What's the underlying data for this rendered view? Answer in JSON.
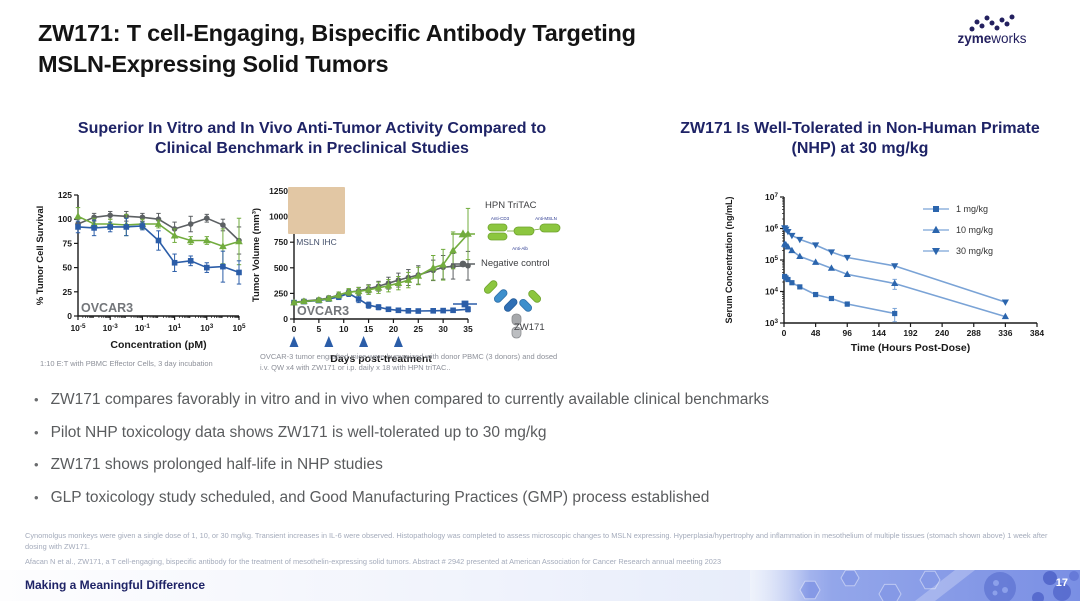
{
  "slide": {
    "title_line1": "ZW171: T cell-Engaging, Bispecific Antibody Targeting",
    "title_line2": "MSLN-Expressing Solid Tumors"
  },
  "logo": {
    "bold": "zyme",
    "rest": "works"
  },
  "left_panel": {
    "heading": "Superior In Vitro and In Vivo Anti-Tumor Activity Compared to Clinical Benchmark in Preclinical Studies"
  },
  "right_panel": {
    "heading": "ZW171 Is Well-Tolerated in Non-Human Primate (NHP) at 30 mg/kg"
  },
  "legend_b": {
    "tritac_labels": [
      "Anti-CD3",
      "Anti-MSLN",
      "Anti-Alb"
    ]
  },
  "bullets": [
    "ZW171 compares favorably in vitro and in vivo when compared to currently available clinical benchmarks",
    "Pilot NHP toxicology data shows ZW171 is well-tolerated up to 30 mg/kg",
    "ZW171 shows prolonged half-life in NHP studies",
    "GLP toxicology study scheduled, and Good Manufacturing Practices (GMP) process established"
  ],
  "footnotes": [
    "Cynomolgus monkeys were given a single dose of 1, 10, or 30 mg/kg. Transient increases in IL-6 were observed. Histopathology was completed to assess microscopic changes to MSLN expressing. Hyperplasia/hypertrophy and inflammation in mesothelium of multiple tissues (stomach shown above) 1 week after dosing with ZW171.",
    "Afacan N et al., ZW171, a T cell-engaging, bispecific antibody for the treatment of mesothelin-expressing solid tumors. Abstract # 2942 presented at American Association for Cancer Research annual meeting 2023"
  ],
  "footer": {
    "tagline": "Making a Meaningful Difference",
    "page_number": "17"
  },
  "chart_data": [
    {
      "id": "invitro",
      "type": "line",
      "annotation": "OVCAR3",
      "xlabel": "Concentration (pM)",
      "ylabel": "% Tumor Cell Survival",
      "xscale": "log",
      "xlim": [
        -5,
        5
      ],
      "xticks": [
        -5,
        -3,
        -1,
        1,
        3,
        5
      ],
      "ylim": [
        0,
        125
      ],
      "yticks": [
        0,
        25,
        50,
        75,
        100,
        125
      ],
      "caption": "1:10 E:T with PBMC Effector Cells, 3 day incubation",
      "series": [
        {
          "name": "ZW171",
          "marker": "square",
          "color": "#2b5da8",
          "x": [
            -5,
            -4,
            -3,
            -2,
            -1,
            0,
            1,
            2,
            3,
            4,
            5
          ],
          "y": [
            92,
            91,
            92,
            92,
            93,
            78,
            55,
            57,
            50,
            51,
            45
          ],
          "err": [
            6,
            8,
            5,
            9,
            4,
            10,
            9,
            5,
            5,
            16,
            12
          ]
        },
        {
          "name": "HPN TriTAC",
          "marker": "triangle-up",
          "color": "#72ac3e",
          "x": [
            -5,
            -4,
            -3,
            -2,
            -1,
            0,
            1,
            2,
            3,
            4,
            5
          ],
          "y": [
            103,
            95,
            95,
            94,
            95,
            95,
            83,
            78,
            78,
            72,
            77
          ],
          "err": [
            9,
            6,
            5,
            11,
            5,
            4,
            7,
            4,
            4,
            18,
            24
          ]
        },
        {
          "name": "Negative control",
          "marker": "circle",
          "color": "#5c6063",
          "x": [
            -5,
            -4,
            -3,
            -2,
            -1,
            0,
            1,
            2,
            3,
            4,
            5
          ],
          "y": [
            95,
            102,
            104,
            103,
            102,
            100,
            90,
            95,
            101,
            94,
            78
          ],
          "err": [
            5,
            4,
            4,
            5,
            4,
            6,
            7,
            8,
            4,
            6,
            14
          ]
        }
      ]
    },
    {
      "id": "invivo",
      "type": "line",
      "annotation": "OVCAR3",
      "xlabel": "Days post-treatment",
      "ylabel": "Tumor Volume (mm³)",
      "xlim": [
        0,
        35
      ],
      "xticks": [
        0,
        5,
        10,
        15,
        20,
        25,
        30,
        35
      ],
      "ylim": [
        0,
        1250
      ],
      "yticks": [
        0,
        250,
        500,
        750,
        1000,
        1250
      ],
      "arrows": [
        0,
        7,
        14,
        21
      ],
      "inset_label": "MSLN IHC",
      "caption": "OVCAR-3 tumor engrafted mice were humanized with donor PBMC (3 donors) and dosed i.v. QW x4 with ZW171 or i.p. daily x 18 with HPN triTAC..",
      "series": [
        {
          "name": "HPN TriTAC",
          "marker": "triangle-up",
          "color": "#72ac3e",
          "x": [
            0,
            2,
            5,
            7,
            9,
            11,
            13,
            15,
            17,
            19,
            21,
            23,
            25,
            28,
            30,
            32,
            35
          ],
          "y": [
            160,
            172,
            185,
            200,
            235,
            265,
            270,
            285,
            305,
            325,
            350,
            380,
            420,
            500,
            530,
            670,
            830
          ],
          "err": [
            15,
            15,
            18,
            22,
            28,
            32,
            38,
            45,
            55,
            60,
            65,
            75,
            85,
            120,
            150,
            180,
            250
          ]
        },
        {
          "name": "Negative control",
          "marker": "circle",
          "color": "#5c6063",
          "x": [
            0,
            2,
            5,
            7,
            9,
            11,
            13,
            15,
            17,
            19,
            21,
            23,
            25,
            28,
            30,
            32,
            35
          ],
          "y": [
            160,
            175,
            188,
            205,
            235,
            260,
            275,
            295,
            320,
            350,
            380,
            405,
            430,
            475,
            505,
            515,
            520
          ],
          "err": [
            15,
            15,
            18,
            22,
            28,
            30,
            34,
            40,
            48,
            58,
            68,
            78,
            90,
            100,
            115,
            125,
            140
          ]
        },
        {
          "name": "ZW171",
          "marker": "square",
          "color": "#2b5da8",
          "x": [
            0,
            2,
            5,
            7,
            9,
            11,
            13,
            15,
            17,
            19,
            21,
            23,
            25,
            28,
            30,
            32,
            35
          ],
          "y": [
            160,
            170,
            180,
            195,
            215,
            250,
            195,
            135,
            115,
            95,
            85,
            80,
            78,
            80,
            82,
            85,
            95
          ],
          "err": [
            15,
            15,
            18,
            20,
            25,
            30,
            35,
            30,
            25,
            20,
            18,
            15,
            15,
            15,
            18,
            18,
            25
          ]
        }
      ]
    },
    {
      "id": "pk",
      "type": "line",
      "xlabel": "Time (Hours Post-Dose)",
      "ylabel": "Serum Concentration (ng/mL)",
      "xlim": [
        0,
        384
      ],
      "xticks": [
        0,
        48,
        96,
        144,
        192,
        240,
        288,
        336,
        384
      ],
      "yscale": "log",
      "ylim": [
        3,
        7
      ],
      "yticks": [
        3,
        4,
        5,
        6,
        7
      ],
      "legend_position": "inside-top-right",
      "series": [
        {
          "name": "1 mg/kg",
          "marker": "square",
          "color": "#2b65ad",
          "line": "#7aa3d6",
          "x": [
            1,
            3,
            6,
            12,
            24,
            48,
            72,
            96,
            168
          ],
          "y": [
            30000,
            27000,
            24000,
            19000,
            14000,
            8000,
            6000,
            4000,
            2000
          ],
          "errf": [
            0,
            0,
            0,
            0,
            0,
            0,
            0.12,
            0.15,
            0.45
          ]
        },
        {
          "name": "10 mg/kg",
          "marker": "triangle-up",
          "color": "#2b65ad",
          "line": "#7aa3d6",
          "x": [
            1,
            3,
            6,
            12,
            24,
            48,
            72,
            96,
            168,
            336
          ],
          "y": [
            320000,
            300000,
            260000,
            200000,
            130000,
            85000,
            55000,
            35000,
            18000,
            1600
          ],
          "errf": [
            0,
            0,
            0,
            0,
            0,
            0,
            0,
            0,
            0.35,
            0
          ]
        },
        {
          "name": "30 mg/kg",
          "marker": "triangle-down",
          "color": "#2b65ad",
          "line": "#7aa3d6",
          "x": [
            1,
            3,
            6,
            12,
            24,
            48,
            72,
            96,
            168,
            336
          ],
          "y": [
            1050000,
            950000,
            800000,
            600000,
            450000,
            300000,
            180000,
            120000,
            65000,
            4600
          ],
          "errf": [
            0.12,
            0,
            0,
            0,
            0,
            0,
            0,
            0,
            0,
            0
          ]
        }
      ]
    }
  ]
}
